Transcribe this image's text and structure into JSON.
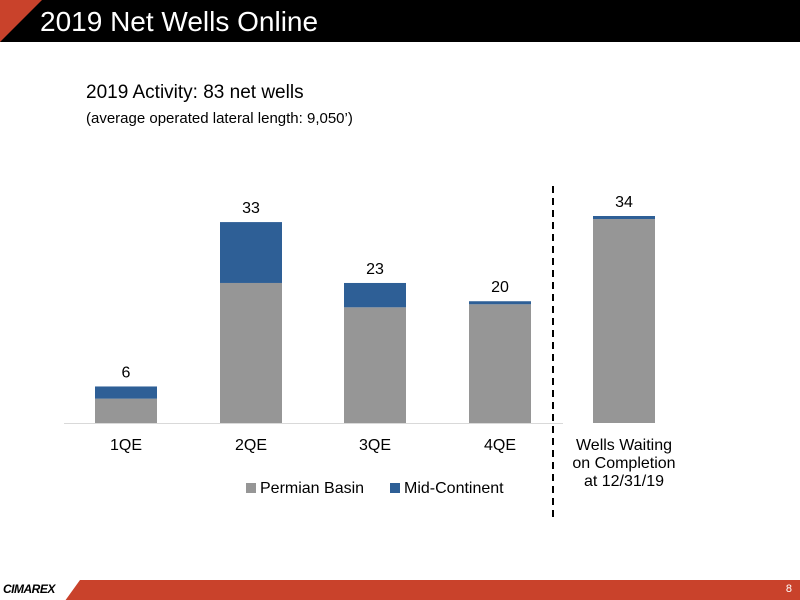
{
  "header": {
    "title": "2019 Net Wells Online"
  },
  "subtitle": "2019 Activity: 83 net wells",
  "subtitle_note": "(average operated lateral length: 9,050’)",
  "colors": {
    "permian": "#969696",
    "midcontinent": "#2e5f96",
    "header_bg": "#000000",
    "accent": "#c9422b"
  },
  "chart_data": {
    "type": "bar",
    "stacked": true,
    "categories": [
      "1QE",
      "2QE",
      "3QE",
      "4QE",
      "Wells Waiting on Completion at 12/31/19"
    ],
    "category_lines": [
      [
        "1QE"
      ],
      [
        "2QE"
      ],
      [
        "3QE"
      ],
      [
        "4QE"
      ],
      [
        "Wells Waiting",
        "on Completion",
        "at 12/31/19"
      ]
    ],
    "series": [
      {
        "name": "Permian Basin",
        "color": "#969696",
        "values": [
          4,
          23,
          19,
          19.5,
          33.5
        ]
      },
      {
        "name": "Mid-Continent",
        "color": "#2e5f96",
        "values": [
          2,
          10,
          4,
          0.5,
          0.5
        ]
      }
    ],
    "totals": [
      "6",
      "33",
      "23",
      "20",
      "34"
    ],
    "ylim": [
      0,
      34
    ],
    "grid": false,
    "legend_position": "bottom",
    "separator_before_index": 4
  },
  "footer": {
    "logo": "CIMAREX",
    "page_number": "8"
  }
}
